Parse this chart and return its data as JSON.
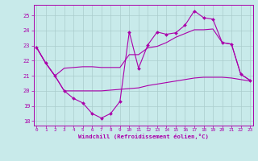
{
  "xlabel": "Windchill (Refroidissement éolien,°C)",
  "xlim": [
    -0.3,
    23.3
  ],
  "ylim": [
    17.7,
    25.7
  ],
  "yticks": [
    18,
    19,
    20,
    21,
    22,
    23,
    24,
    25
  ],
  "xticks": [
    0,
    1,
    2,
    3,
    4,
    5,
    6,
    7,
    8,
    9,
    10,
    11,
    12,
    13,
    14,
    15,
    16,
    17,
    18,
    19,
    20,
    21,
    22,
    23
  ],
  "bg_color": "#c8eaea",
  "line_color": "#aa00aa",
  "grid_color": "#aacccc",
  "line1_x": [
    0,
    1,
    2,
    3,
    4,
    5,
    6,
    7,
    8,
    9,
    10,
    11,
    12,
    13,
    14,
    15,
    16,
    17,
    18,
    19,
    20,
    21,
    22,
    23
  ],
  "line1_y": [
    22.9,
    21.85,
    21.0,
    20.0,
    19.5,
    19.2,
    18.5,
    18.2,
    18.5,
    19.3,
    23.9,
    21.5,
    23.05,
    23.9,
    23.75,
    23.85,
    24.35,
    25.3,
    24.85,
    24.75,
    23.2,
    23.1,
    21.1,
    20.7
  ],
  "line1_markers_x": [
    0,
    1,
    2,
    3,
    4,
    5,
    6,
    7,
    8,
    9,
    10,
    11,
    12,
    13,
    14,
    15,
    16,
    17,
    18,
    19,
    20,
    21,
    22,
    23
  ],
  "line1_markers_y": [
    22.9,
    21.85,
    21.0,
    20.0,
    19.5,
    19.2,
    18.5,
    18.2,
    18.5,
    19.3,
    23.9,
    21.5,
    23.05,
    23.9,
    23.75,
    23.85,
    24.35,
    25.3,
    24.85,
    24.75,
    23.2,
    23.1,
    21.1,
    20.7
  ],
  "line2_x": [
    0,
    1,
    2,
    3,
    4,
    5,
    6,
    7,
    8,
    9,
    10,
    11,
    12,
    13,
    14,
    15,
    16,
    17,
    18,
    19,
    20,
    21,
    22,
    23
  ],
  "line2_y": [
    22.9,
    21.85,
    21.0,
    21.5,
    21.55,
    21.6,
    21.6,
    21.55,
    21.55,
    21.55,
    22.4,
    22.4,
    22.85,
    22.95,
    23.2,
    23.55,
    23.8,
    24.05,
    24.05,
    24.1,
    23.2,
    23.1,
    21.1,
    20.7
  ],
  "line3_x": [
    0,
    1,
    2,
    3,
    4,
    5,
    6,
    7,
    8,
    9,
    10,
    11,
    12,
    13,
    14,
    15,
    16,
    17,
    18,
    19,
    20,
    21,
    22,
    23
  ],
  "line3_y": [
    22.9,
    21.85,
    21.0,
    20.0,
    20.0,
    20.0,
    20.0,
    20.0,
    20.05,
    20.1,
    20.15,
    20.2,
    20.35,
    20.45,
    20.55,
    20.65,
    20.75,
    20.85,
    20.9,
    20.9,
    20.9,
    20.85,
    20.75,
    20.65
  ]
}
